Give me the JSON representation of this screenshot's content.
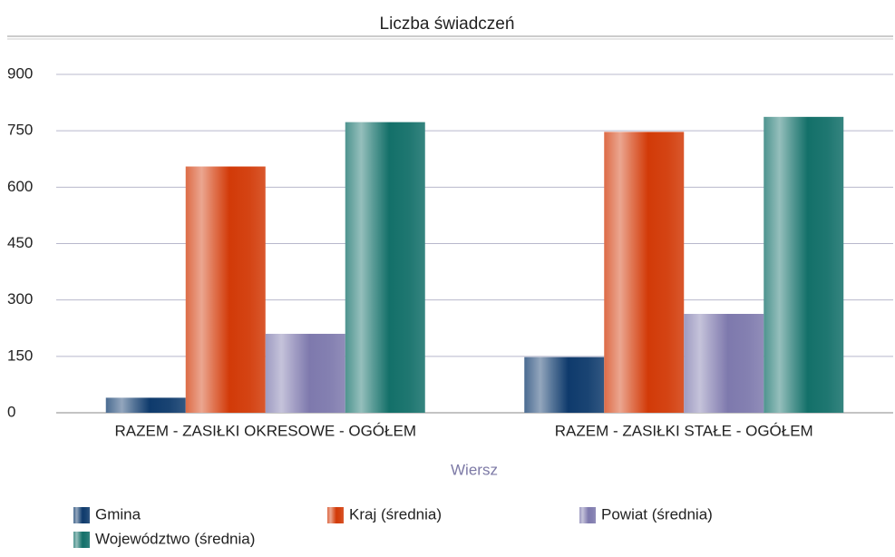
{
  "chart_data": {
    "type": "bar",
    "title": "Liczba świadczeń",
    "x_label": "Wiersz",
    "categories": [
      "RAZEM - ZASIŁKI OKRESOWE - OGÓŁEM",
      "RAZEM - ZASIŁKI STAŁE - OGÓŁEM"
    ],
    "series": [
      {
        "name": "Gmina",
        "color": "#0e3a6c",
        "values": [
          40,
          148
        ]
      },
      {
        "name": "Kraj (średnia)",
        "color": "#d23a08",
        "values": [
          655,
          747
        ]
      },
      {
        "name": "Powiat (średnia)",
        "color": "#7e79ad",
        "values": [
          210,
          263
        ]
      },
      {
        "name": "Województwo (średnia)",
        "color": "#137069",
        "values": [
          773,
          787
        ]
      }
    ],
    "ylim": [
      0,
      900
    ],
    "yticks": [
      0,
      150,
      300,
      450,
      600,
      750,
      900
    ],
    "grid": true
  }
}
